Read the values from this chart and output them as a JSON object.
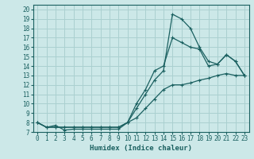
{
  "xlabel": "Humidex (Indice chaleur)",
  "bg_color": "#cce8e8",
  "line_color": "#1a6060",
  "grid_color": "#aad0d0",
  "xlim": [
    -0.5,
    23.5
  ],
  "ylim": [
    7,
    20.5
  ],
  "yticks": [
    7,
    8,
    9,
    10,
    11,
    12,
    13,
    14,
    15,
    16,
    17,
    18,
    19,
    20
  ],
  "xticks": [
    0,
    1,
    2,
    3,
    4,
    5,
    6,
    7,
    8,
    9,
    10,
    11,
    12,
    13,
    14,
    15,
    16,
    17,
    18,
    19,
    20,
    21,
    22,
    23
  ],
  "line1_x": [
    0,
    1,
    2,
    3,
    4,
    5,
    6,
    7,
    8,
    9,
    10,
    11,
    12,
    13,
    14,
    15,
    16,
    17,
    18,
    19,
    20,
    21,
    22,
    23
  ],
  "line1_y": [
    8,
    7.5,
    7.7,
    7.2,
    7.3,
    7.3,
    7.3,
    7.3,
    7.3,
    7.3,
    8,
    9.5,
    11,
    12.5,
    13.5,
    19.5,
    19,
    18,
    16,
    14.5,
    14.2,
    15.2,
    14.5,
    13
  ],
  "line2_x": [
    0,
    1,
    2,
    3,
    4,
    5,
    6,
    7,
    8,
    9,
    10,
    11,
    12,
    13,
    14,
    15,
    16,
    17,
    18,
    19,
    20,
    21,
    22,
    23
  ],
  "line2_y": [
    8,
    7.5,
    7.5,
    7.5,
    7.5,
    7.5,
    7.5,
    7.5,
    7.5,
    7.5,
    8,
    10,
    11.5,
    13.5,
    14,
    17,
    16.5,
    16,
    15.8,
    14,
    14.2,
    15.2,
    14.5,
    13
  ],
  "line3_x": [
    0,
    1,
    2,
    3,
    4,
    5,
    6,
    7,
    8,
    9,
    10,
    11,
    12,
    13,
    14,
    15,
    16,
    17,
    18,
    19,
    20,
    21,
    22,
    23
  ],
  "line3_y": [
    8,
    7.5,
    7.5,
    7.5,
    7.5,
    7.5,
    7.5,
    7.5,
    7.5,
    7.5,
    8,
    8.5,
    9.5,
    10.5,
    11.5,
    12,
    12,
    12.2,
    12.5,
    12.7,
    13,
    13.2,
    13,
    13
  ]
}
